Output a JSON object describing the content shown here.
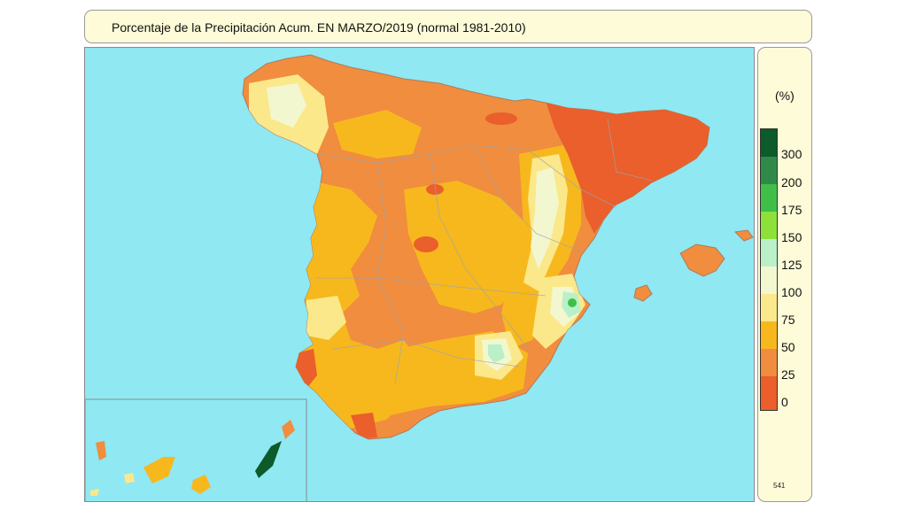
{
  "title": "Porcentaje de la Precipitación Acum. EN MARZO/2019 (normal 1981-2010)",
  "legend": {
    "unit": "(%)",
    "classes": [
      {
        "label": "300",
        "color": "#0d5a2a"
      },
      {
        "label": "200",
        "color": "#2f8a4a"
      },
      {
        "label": "175",
        "color": "#3fbf4a"
      },
      {
        "label": "150",
        "color": "#8ee03a"
      },
      {
        "label": "125",
        "color": "#b9f0c8"
      },
      {
        "label": "100",
        "color": "#f3f7cf"
      },
      {
        "label": "75",
        "color": "#fbe88a"
      },
      {
        "label": "50",
        "color": "#f7b81e"
      },
      {
        "label": "25",
        "color": "#f08d3e"
      },
      {
        "label": "0",
        "color": "#ea5f2b"
      }
    ],
    "code": "541"
  },
  "colors": {
    "sea": "#8fe8f2",
    "land_base": "#f08d3e",
    "dry": "#ea5f2b",
    "moderate": "#f7b81e",
    "near_normal": "#fbe88a",
    "normal": "#f3f7cf",
    "wet": "#b9f0c8",
    "very_wet": "#3fbf4a",
    "extreme": "#0d5a2a"
  }
}
